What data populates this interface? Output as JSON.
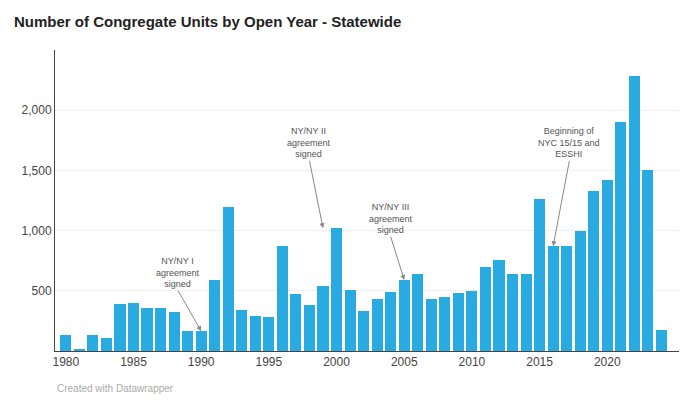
{
  "chart_data": {
    "type": "bar",
    "title": "Number of Congregate Units by Open Year - Statewide",
    "footer": "Created with Datawrapper",
    "x": [
      1980,
      1981,
      1982,
      1983,
      1984,
      1985,
      1986,
      1987,
      1988,
      1989,
      1990,
      1991,
      1992,
      1993,
      1994,
      1995,
      1996,
      1997,
      1998,
      1999,
      2000,
      2001,
      2002,
      2003,
      2004,
      2005,
      2006,
      2007,
      2008,
      2009,
      2010,
      2011,
      2012,
      2013,
      2014,
      2015,
      2016,
      2017,
      2018,
      2019,
      2020,
      2021,
      2022,
      2023,
      2024
    ],
    "values": [
      130,
      20,
      130,
      110,
      390,
      400,
      360,
      360,
      320,
      170,
      165,
      590,
      1200,
      340,
      290,
      280,
      870,
      470,
      380,
      540,
      1020,
      510,
      330,
      430,
      490,
      590,
      640,
      430,
      450,
      480,
      500,
      700,
      760,
      640,
      640,
      1260,
      870,
      870,
      1000,
      1330,
      1420,
      1900,
      2280,
      1500,
      175
    ],
    "color": "#29aae1",
    "xlim": [
      1979.2,
      2025.3
    ],
    "xticks": [
      1980,
      1985,
      1990,
      1995,
      2000,
      2005,
      2010,
      2015,
      2020
    ],
    "ylim": [
      0,
      2500
    ],
    "yticks": [
      500,
      {
        "value": 1000,
        "label": "1,000"
      },
      {
        "value": 1500,
        "label": "1,500"
      },
      {
        "value": 2000,
        "label": "2,000"
      }
    ],
    "grid": true,
    "annotations": [
      {
        "text": "NY/NY I\nagreement\nsigned",
        "x": 1990,
        "y": 165,
        "text_x": 1988.3,
        "text_y": 500
      },
      {
        "text": "NY/NY II\nagreement\nsigned",
        "x": 1999,
        "y": 1020,
        "text_x": 1998.0,
        "text_y": 1580
      },
      {
        "text": "NY/NY III\nagreement\nsigned",
        "x": 2005,
        "y": 590,
        "text_x": 2004.0,
        "text_y": 950
      },
      {
        "text": "Beginning of\nNYC 15/15 and\nESSHI",
        "x": 2016,
        "y": 870,
        "text_x": 2017.2,
        "text_y": 1580
      }
    ]
  }
}
